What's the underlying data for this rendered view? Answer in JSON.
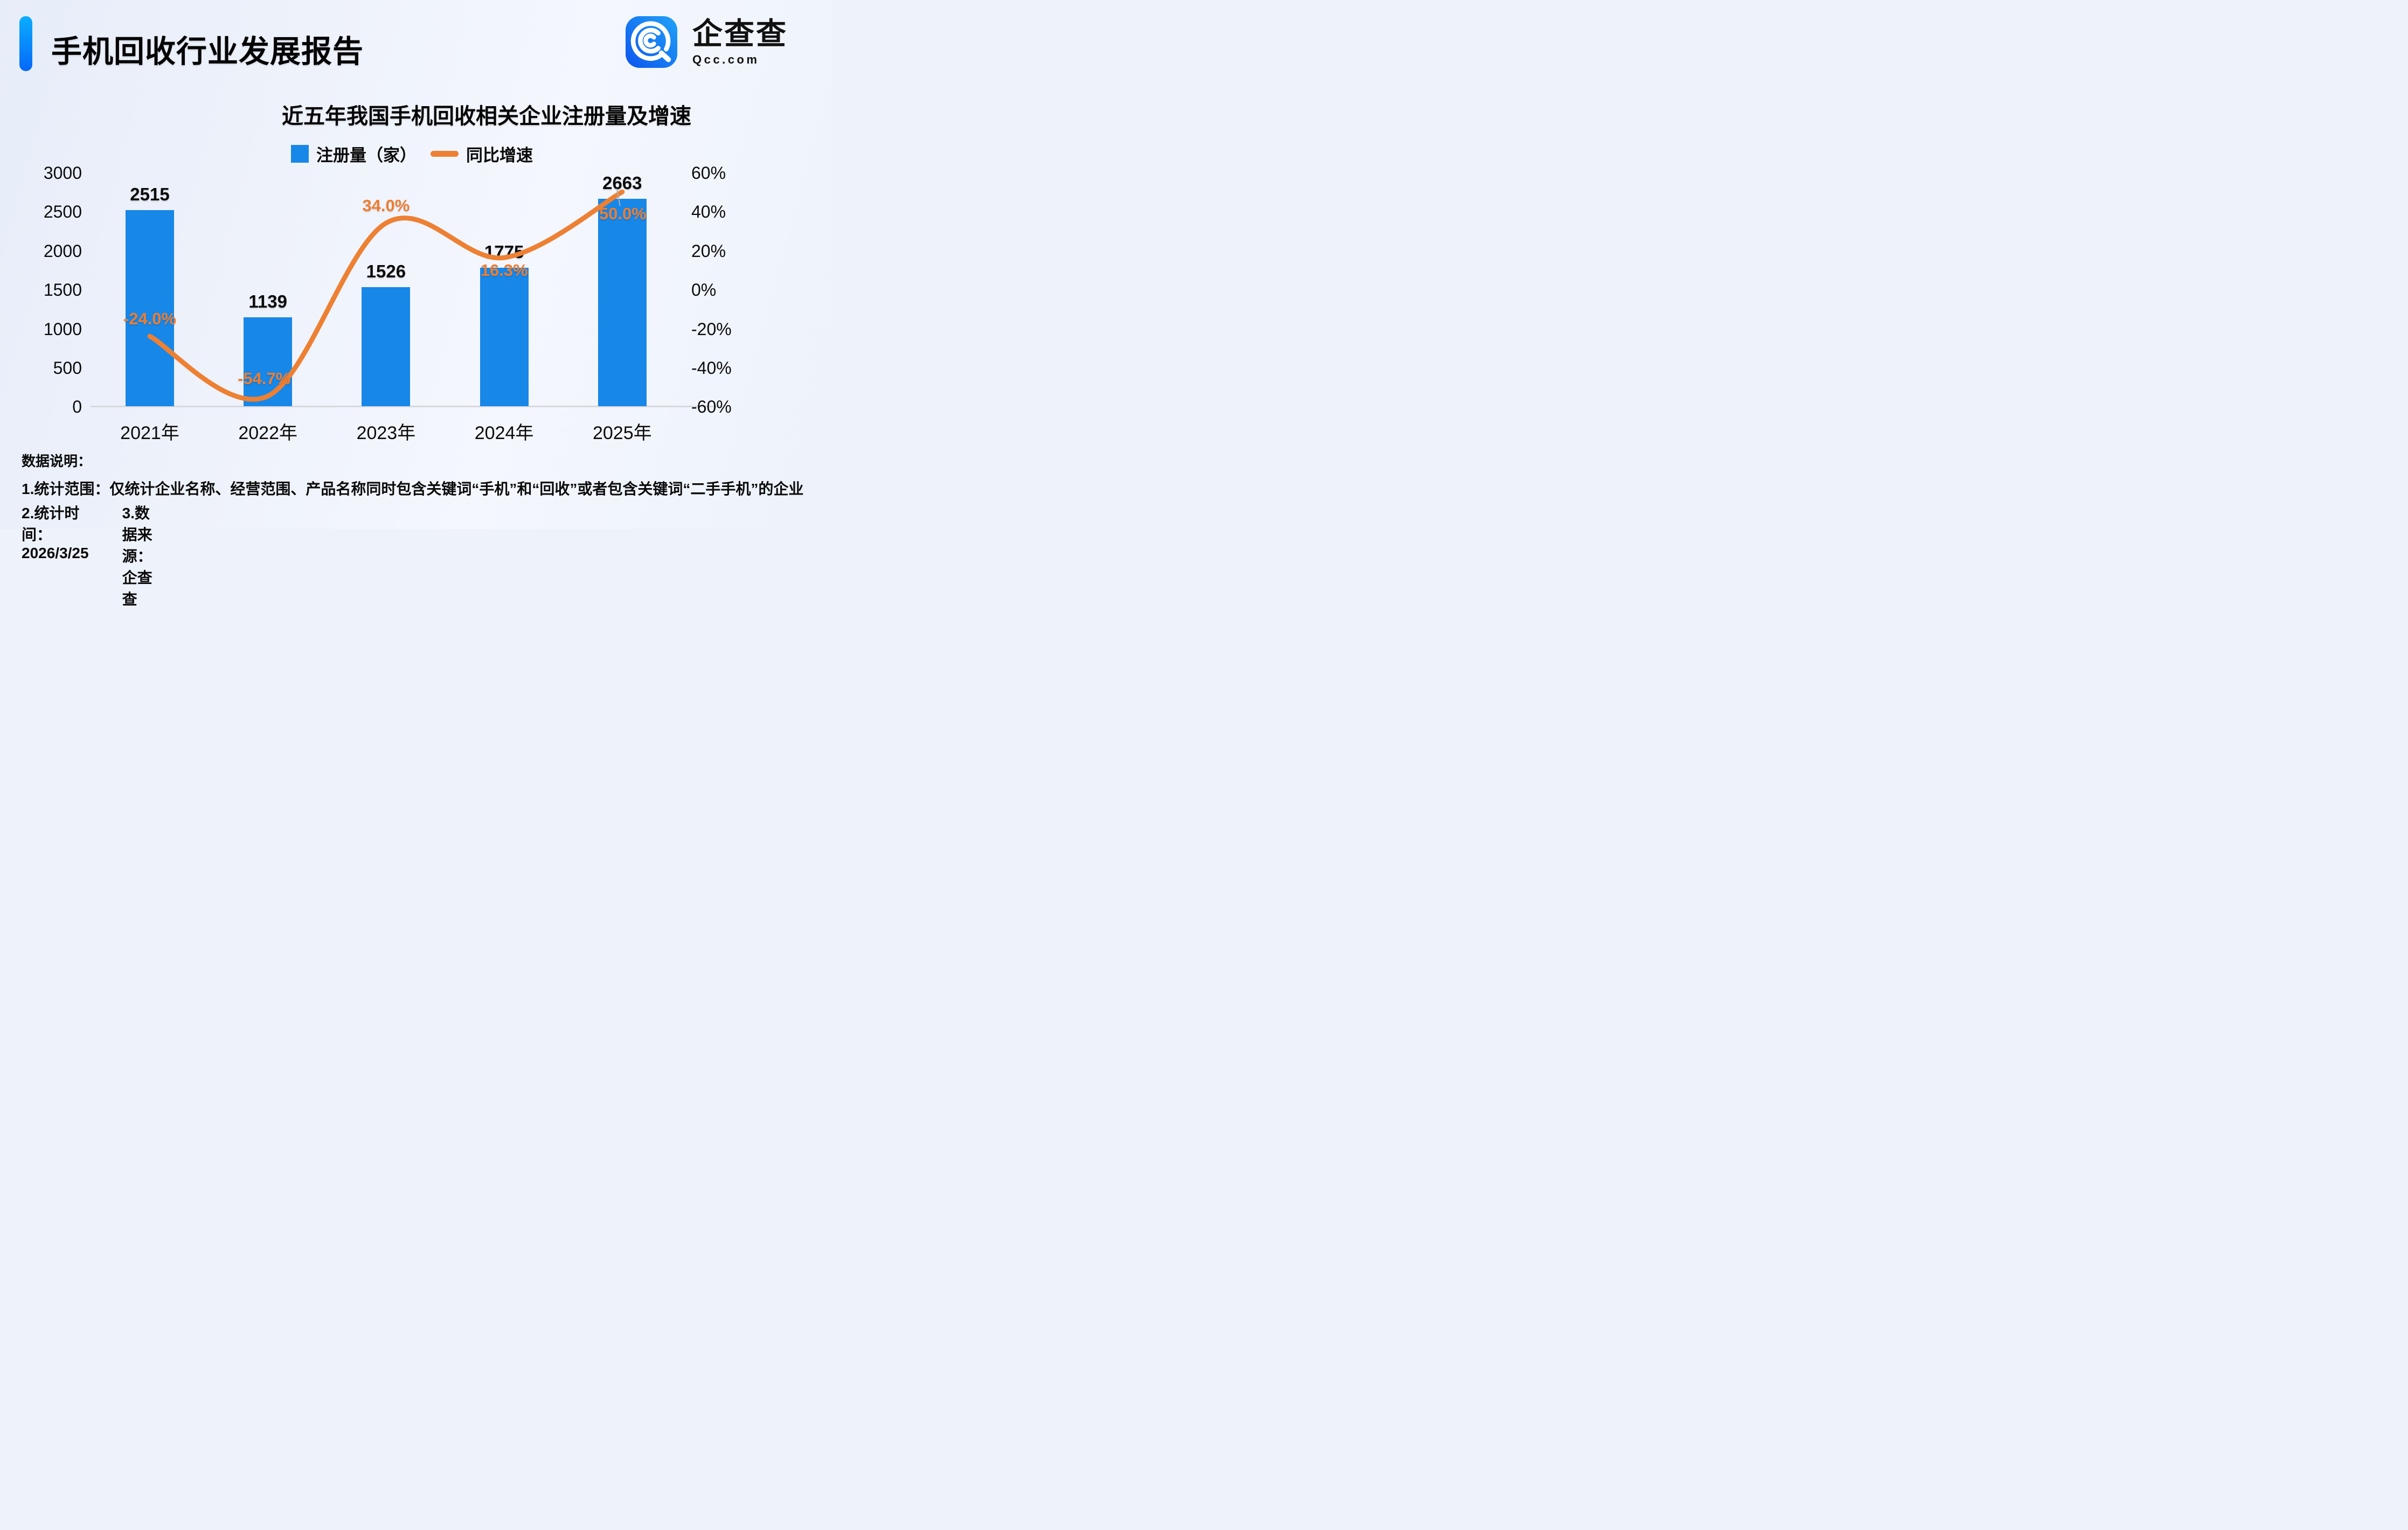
{
  "header": {
    "title": "手机回收行业发展报告",
    "logo": {
      "brand": "企查查",
      "domain": "Qcc.com"
    }
  },
  "chart_data": {
    "type": "bar",
    "title": "近五年我国手机回收相关企业注册量及增速",
    "categories": [
      "2021年",
      "2022年",
      "2023年",
      "2024年",
      "2025年"
    ],
    "series": [
      {
        "name": "注册量（家）",
        "type": "bar",
        "values": [
          2515,
          1139,
          1526,
          1775,
          2663
        ],
        "labels": [
          "2515",
          "1139",
          "1526",
          "1775",
          "2663"
        ],
        "color": "#1787E8",
        "axis": "left"
      },
      {
        "name": "同比增速",
        "type": "line",
        "values": [
          -24.0,
          -54.7,
          34.0,
          16.3,
          50.0
        ],
        "labels": [
          "-24.0%",
          "-54.7%",
          "34.0%",
          "16.3%",
          "50.0%"
        ],
        "color": "#ED8033",
        "axis": "right"
      }
    ],
    "left_axis": {
      "ticks": [
        "3000",
        "2500",
        "2000",
        "1500",
        "1000",
        "500",
        "0"
      ],
      "min": 0,
      "max": 3000
    },
    "right_axis": {
      "ticks": [
        "60%",
        "40%",
        "20%",
        "0%",
        "-20%",
        "-40%",
        "-60%"
      ],
      "min": -60,
      "max": 60
    },
    "legend_position": "top",
    "grid": false
  },
  "footer": {
    "heading": "数据说明：",
    "note1": "1.统计范围：仅统计企业名称、经营范围、产品名称同时包含关键词“手机”和“回收”或者包含关键词“二手手机”的企业",
    "note2_time": "2.统计时间：2026/3/25",
    "note2_source": "3.数据来源：企查查"
  }
}
